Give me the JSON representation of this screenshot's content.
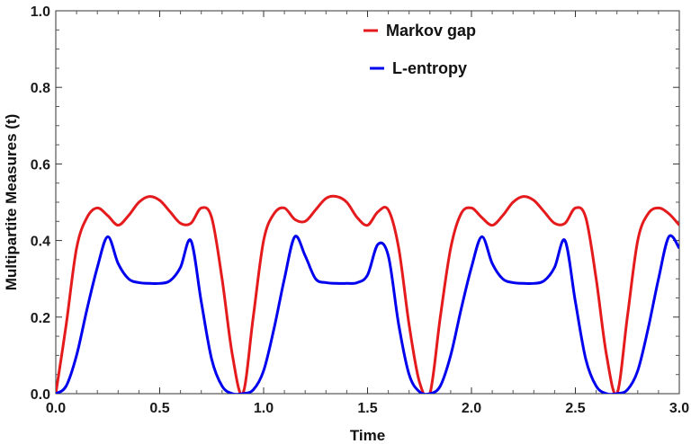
{
  "chart_data": {
    "type": "line",
    "title": "",
    "xlabel": "Time",
    "ylabel": "Multipartite Measures (t)",
    "xlim": [
      0,
      3
    ],
    "ylim": [
      0,
      1
    ],
    "x_ticks": [
      "0.0",
      "0.5",
      "1.0",
      "1.5",
      "2.0",
      "2.5",
      "3.0"
    ],
    "y_ticks": [
      "0.0",
      "0.2",
      "0.4",
      "0.6",
      "0.8",
      "1.0"
    ],
    "grid": false,
    "legend_position": "top-center",
    "series": [
      {
        "name": "Markov gap",
        "color": "#e41a1c",
        "x": [
          0,
          0.05,
          0.1,
          0.15,
          0.2,
          0.25,
          0.3,
          0.35,
          0.4,
          0.45,
          0.5,
          0.55,
          0.6,
          0.65,
          0.7,
          0.75,
          0.8,
          0.85,
          0.9,
          0.95,
          1.0,
          1.05,
          1.1,
          1.15,
          1.2,
          1.25,
          1.3,
          1.35,
          1.4,
          1.45,
          1.5,
          1.55,
          1.6,
          1.65,
          1.7,
          1.75,
          1.8,
          1.85,
          1.9,
          1.95,
          2.0,
          2.05,
          2.1,
          2.15,
          2.2,
          2.25,
          2.3,
          2.35,
          2.4,
          2.45,
          2.5,
          2.55,
          2.6,
          2.65,
          2.7,
          2.75,
          2.8,
          2.85,
          2.9,
          2.95,
          3.0
        ],
        "values": [
          0.0,
          0.18,
          0.38,
          0.46,
          0.485,
          0.465,
          0.44,
          0.465,
          0.5,
          0.515,
          0.505,
          0.475,
          0.445,
          0.445,
          0.485,
          0.46,
          0.3,
          0.1,
          0.0,
          0.2,
          0.4,
          0.47,
          0.485,
          0.455,
          0.45,
          0.48,
          0.51,
          0.515,
          0.5,
          0.46,
          0.44,
          0.475,
          0.48,
          0.38,
          0.18,
          0.03,
          0.0,
          0.2,
          0.38,
          0.47,
          0.485,
          0.46,
          0.44,
          0.465,
          0.5,
          0.515,
          0.505,
          0.475,
          0.445,
          0.445,
          0.485,
          0.46,
          0.3,
          0.1,
          0.0,
          0.2,
          0.4,
          0.47,
          0.485,
          0.47,
          0.44
        ]
      },
      {
        "name": "L-entropy",
        "color": "#0000ee",
        "x": [
          0,
          0.05,
          0.1,
          0.15,
          0.2,
          0.25,
          0.3,
          0.35,
          0.4,
          0.45,
          0.5,
          0.55,
          0.6,
          0.65,
          0.7,
          0.75,
          0.8,
          0.85,
          0.9,
          0.95,
          1.0,
          1.05,
          1.1,
          1.15,
          1.2,
          1.25,
          1.3,
          1.35,
          1.4,
          1.45,
          1.5,
          1.55,
          1.6,
          1.65,
          1.7,
          1.75,
          1.8,
          1.85,
          1.9,
          1.95,
          2.0,
          2.05,
          2.1,
          2.15,
          2.2,
          2.25,
          2.3,
          2.35,
          2.4,
          2.45,
          2.5,
          2.55,
          2.6,
          2.65,
          2.7,
          2.75,
          2.8,
          2.85,
          2.9,
          2.95,
          3.0
        ],
        "values": [
          0.0,
          0.02,
          0.1,
          0.22,
          0.33,
          0.41,
          0.34,
          0.3,
          0.29,
          0.288,
          0.288,
          0.295,
          0.33,
          0.4,
          0.24,
          0.09,
          0.02,
          0.0,
          0.0,
          0.01,
          0.06,
          0.17,
          0.3,
          0.41,
          0.36,
          0.3,
          0.29,
          0.288,
          0.288,
          0.29,
          0.31,
          0.39,
          0.36,
          0.18,
          0.05,
          0.005,
          0.0,
          0.02,
          0.1,
          0.22,
          0.33,
          0.41,
          0.34,
          0.3,
          0.29,
          0.288,
          0.288,
          0.295,
          0.33,
          0.4,
          0.24,
          0.09,
          0.02,
          0.0,
          0.0,
          0.01,
          0.06,
          0.17,
          0.3,
          0.41,
          0.38
        ]
      }
    ]
  }
}
